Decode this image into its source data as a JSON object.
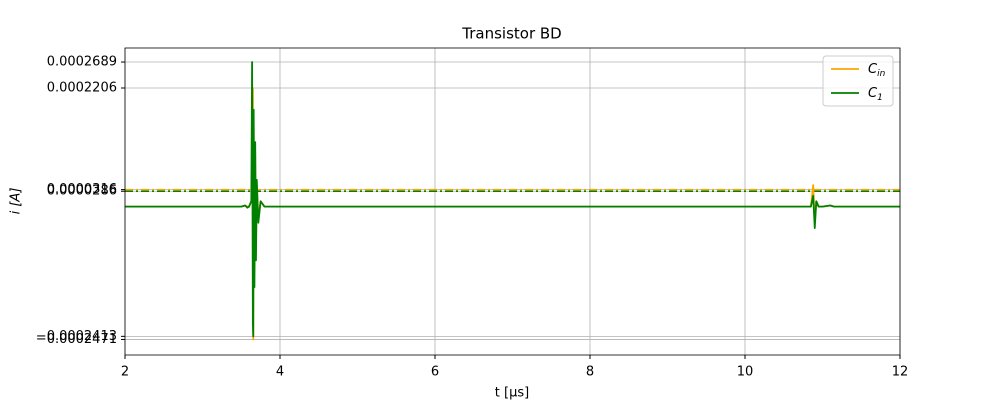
{
  "chart_data": {
    "type": "line",
    "title": "Transistor BD",
    "x_label": "t [μs]",
    "y_label": "i [A]",
    "x": [
      2,
      3.5,
      3.55,
      3.58,
      3.6,
      3.63,
      3.64,
      3.65,
      3.655,
      3.66,
      3.67,
      3.68,
      3.69,
      3.7,
      3.72,
      3.75,
      3.8,
      4,
      10.85,
      10.88,
      10.9,
      10.92,
      10.95,
      11.0,
      11.1,
      11.15,
      12
    ],
    "series": [
      {
        "name": "C",
        "subscript": "in",
        "color": "orange",
        "values": [
          0,
          0,
          2e-06,
          0,
          0,
          1e-05,
          5e-05,
          0.0002206,
          -0.0002471,
          0.00015,
          -0.00012,
          0.0001,
          -8e-05,
          4e-05,
          -2e-05,
          1e-05,
          0,
          0,
          0,
          4e-05,
          -3e-05,
          1e-05,
          0,
          0,
          2e-06,
          0,
          0
        ]
      },
      {
        "name": "C",
        "subscript": "1",
        "color": "green",
        "values": [
          0,
          0,
          2e-06,
          -2e-06,
          0,
          1e-05,
          0.0002689,
          -0.00022,
          -0.0002413,
          0.00018,
          -0.00015,
          0.00012,
          -0.0001,
          5e-05,
          -3e-05,
          1e-05,
          0,
          0,
          0,
          2e-05,
          -4e-05,
          1e-05,
          0,
          0,
          2e-06,
          0,
          0
        ]
      }
    ],
    "hlines": [
      {
        "value": 3.16e-05,
        "color": "orange"
      },
      {
        "value": 2.86e-05,
        "color": "green"
      }
    ],
    "xlim": [
      2,
      12
    ],
    "xticks": [
      2,
      4,
      6,
      8,
      10,
      12
    ],
    "ylim": [
      -0.000276,
      0.000295
    ],
    "yticks": [
      {
        "value": -0.0002471,
        "label": "−0.0002471"
      },
      {
        "value": -0.0002413,
        "label": "−0.0002413"
      },
      2.86e-05,
      3.16e-05,
      0.0002206,
      0.0002689
    ],
    "grid": true,
    "legend": "upper right"
  }
}
